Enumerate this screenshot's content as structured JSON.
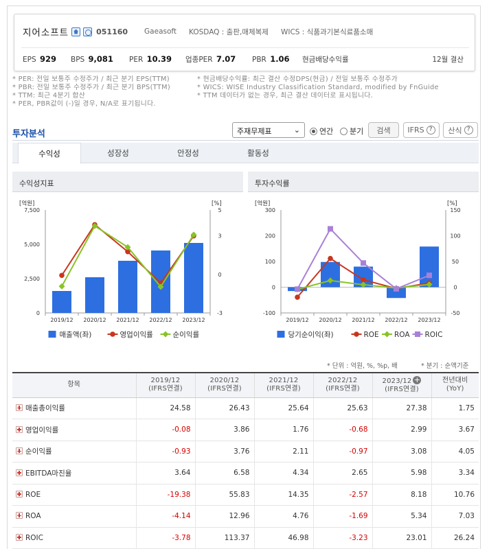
{
  "company": {
    "name": "지어소프트",
    "code": "051160",
    "english": "Gaeasoft",
    "market": "KOSDAQ : 출판,매체복제",
    "wics": "WICS : 식품과기본식료품소매",
    "metrics": [
      {
        "label": "EPS",
        "value": "929"
      },
      {
        "label": "BPS",
        "value": "9,081"
      },
      {
        "label": "PER",
        "value": "10.39"
      },
      {
        "label": "업종PER",
        "value": "7.07"
      },
      {
        "label": "PBR",
        "value": "1.06"
      },
      {
        "label": "현금배당수익률",
        "value": ""
      }
    ],
    "settlement": "12월 결산"
  },
  "notes": {
    "left": [
      "* PER: 전일 보통주 수정주가 / 최근 분기 EPS(TTM)",
      "* PBR: 전일 보통주 수정주가 / 최근 분기 BPS(TTM)",
      "* TTM: 최근 4분기 합산",
      "* PER, PBR값이 (-)일 경우, N/A로 표기됩니다."
    ],
    "right": [
      "* 현금배당수익률: 최근 결산 수정DPS(현금) / 전일 보통주 수정주가",
      "* WICS: WISE Industry Classification Standard, modified by FnGuide",
      "* TTM 데이터가 없는 경우, 최근 결산 데이터로 표시됩니다."
    ]
  },
  "section": {
    "title": "투자분석",
    "select_value": "주재무제표",
    "radio_annual": "연간",
    "radio_quarter": "분기",
    "search_btn": "검색",
    "ifrs_btn": "IFRS",
    "formula_btn": "산식"
  },
  "tabs": [
    "수익성",
    "성장성",
    "안정성",
    "활동성"
  ],
  "panels": {
    "left_title": "수익성지표",
    "right_title": "투자수익률"
  },
  "chart_data": [
    {
      "type": "bar",
      "categories": [
        "2019/12",
        "2020/12",
        "2021/12",
        "2022/12",
        "2023/12"
      ],
      "ylabel": "[억원]",
      "y2label": "[%]",
      "ylim": [
        0,
        7500
      ],
      "y2lim": [
        -3,
        5
      ],
      "yticks": [
        "0",
        "2,500",
        "5,000",
        "7,500"
      ],
      "y2ticks": [
        "-3",
        "0",
        "3",
        "5"
      ],
      "series": [
        {
          "name": "매출액(좌)",
          "type": "bar",
          "axis": "left",
          "color": "#2d6fe0",
          "values": [
            1600,
            2600,
            3800,
            4550,
            5100
          ]
        },
        {
          "name": "영업이익률",
          "type": "line",
          "axis": "right",
          "color": "#c8361e",
          "values": [
            -0.08,
            3.86,
            1.76,
            -0.68,
            2.99
          ]
        },
        {
          "name": "순이익률",
          "type": "line",
          "axis": "right",
          "color": "#88c425",
          "values": [
            -0.93,
            3.76,
            2.11,
            -0.97,
            3.08
          ]
        }
      ]
    },
    {
      "type": "bar",
      "categories": [
        "2019/12",
        "2020/12",
        "2021/12",
        "2022/12",
        "2023/12"
      ],
      "ylabel": "[억원]",
      "y2label": "[%]",
      "ylim": [
        -100,
        300
      ],
      "y2lim": [
        -50,
        150
      ],
      "yticks": [
        "-100",
        "0",
        "100",
        "200",
        "300"
      ],
      "y2ticks": [
        "-50",
        "0",
        "50",
        "100",
        "150"
      ],
      "series": [
        {
          "name": "당기순이익(좌)",
          "type": "bar",
          "axis": "left",
          "color": "#2d6fe0",
          "values": [
            -15,
            98,
            80,
            -42,
            158
          ]
        },
        {
          "name": "ROE",
          "type": "line",
          "axis": "right",
          "color": "#c8361e",
          "values": [
            -19.38,
            55.83,
            14.35,
            -2.57,
            8.18
          ]
        },
        {
          "name": "ROA",
          "type": "line",
          "axis": "right",
          "color": "#88c425",
          "values": [
            -4.14,
            12.96,
            4.76,
            -1.69,
            5.34
          ]
        },
        {
          "name": "ROIC",
          "type": "line",
          "axis": "right",
          "color": "#a980d8",
          "values": [
            -3.78,
            113.37,
            46.98,
            -3.23,
            23.01
          ]
        }
      ]
    }
  ],
  "units_left": "* 단위 : 억원, %, %p, 배",
  "units_right": "* 분기 : 순액기준",
  "table": {
    "headers": [
      {
        "line1": "항목",
        "line2": ""
      },
      {
        "line1": "2019/12",
        "line2": "(IFRS연결)"
      },
      {
        "line1": "2020/12",
        "line2": "(IFRS연결)"
      },
      {
        "line1": "2021/12",
        "line2": "(IFRS연결)"
      },
      {
        "line1": "2022/12",
        "line2": "(IFRS연결)"
      },
      {
        "line1": "2023/12",
        "line2": "(IFRS연결)"
      },
      {
        "line1": "전년대비",
        "line2": "(YoY)"
      }
    ],
    "rows": [
      {
        "label": "매출총이익률",
        "values": [
          "24.58",
          "26.43",
          "25.64",
          "25.63",
          "27.38",
          "1.75"
        ]
      },
      {
        "label": "영업이익률",
        "values": [
          "-0.08",
          "3.86",
          "1.76",
          "-0.68",
          "2.99",
          "3.67"
        ]
      },
      {
        "label": "순이익률",
        "values": [
          "-0.93",
          "3.76",
          "2.11",
          "-0.97",
          "3.08",
          "4.05"
        ]
      },
      {
        "label": "EBITDA마진율",
        "values": [
          "3.64",
          "6.58",
          "4.34",
          "2.65",
          "5.98",
          "3.34"
        ]
      },
      {
        "label": "ROE",
        "values": [
          "-19.38",
          "55.83",
          "14.35",
          "-2.57",
          "8.18",
          "10.76"
        ]
      },
      {
        "label": "ROA",
        "values": [
          "-4.14",
          "12.96",
          "4.76",
          "-1.69",
          "5.34",
          "7.03"
        ]
      },
      {
        "label": "ROIC",
        "values": [
          "-3.78",
          "113.37",
          "46.98",
          "-3.23",
          "23.01",
          "26.24"
        ]
      }
    ]
  }
}
